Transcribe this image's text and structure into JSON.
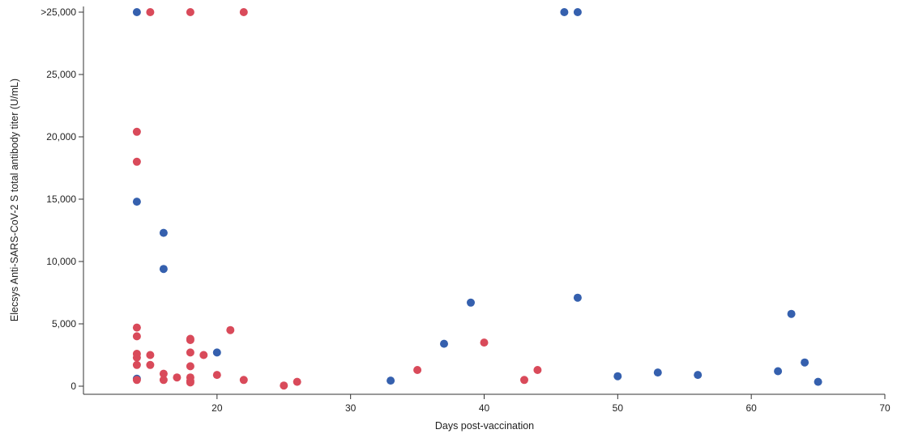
{
  "chart_data": {
    "type": "scatter",
    "title": "",
    "xlabel": "Days post-vaccination",
    "ylabel": "Elecsys Anti-SARS-CoV-2 S total antibody titer (U/mL)",
    "xlim": [
      10,
      70
    ],
    "ylim": [
      0,
      25000
    ],
    "x_ticks": [
      20,
      30,
      40,
      50,
      60,
      70
    ],
    "y_ticks": [
      {
        "value": 0,
        "label": "0"
      },
      {
        "value": 5000,
        "label": "5,000"
      },
      {
        "value": 10000,
        "label": "10,000"
      },
      {
        "value": 15000,
        "label": "15,000"
      },
      {
        "value": 20000,
        "label": "20,000"
      },
      {
        "value": 25000,
        "label": "25,000"
      },
      {
        "value": ">25000",
        "label": ">25,000"
      }
    ],
    "overflow_label": ">25,000",
    "grid": false,
    "legend": "none",
    "series": [
      {
        "color": "#3560ae",
        "points": [
          [
            14,
            ">25000"
          ],
          [
            46,
            ">25000"
          ],
          [
            47,
            ">25000"
          ],
          [
            14,
            14800
          ],
          [
            16,
            12300
          ],
          [
            16,
            9400
          ],
          [
            14,
            600
          ],
          [
            20,
            2700
          ],
          [
            33,
            450
          ],
          [
            37,
            3400
          ],
          [
            39,
            6700
          ],
          [
            47,
            7100
          ],
          [
            50,
            800
          ],
          [
            53,
            1100
          ],
          [
            56,
            900
          ],
          [
            62,
            1200
          ],
          [
            63,
            5800
          ],
          [
            64,
            1900
          ],
          [
            65,
            350
          ]
        ]
      },
      {
        "color": "#d94a5a",
        "points": [
          [
            15,
            ">25000"
          ],
          [
            18,
            ">25000"
          ],
          [
            22,
            ">25000"
          ],
          [
            14,
            20400
          ],
          [
            14,
            18000
          ],
          [
            14,
            4700
          ],
          [
            14,
            4000
          ],
          [
            14,
            2600
          ],
          [
            14,
            2300
          ],
          [
            14,
            1700
          ],
          [
            14,
            500
          ],
          [
            15,
            2500
          ],
          [
            15,
            1700
          ],
          [
            16,
            1000
          ],
          [
            16,
            500
          ],
          [
            17,
            700
          ],
          [
            18,
            3800
          ],
          [
            18,
            3700
          ],
          [
            18,
            2700
          ],
          [
            18,
            1600
          ],
          [
            18,
            700
          ],
          [
            18,
            400
          ],
          [
            18,
            300
          ],
          [
            19,
            2500
          ],
          [
            20,
            900
          ],
          [
            21,
            4500
          ],
          [
            22,
            500
          ],
          [
            25,
            50
          ],
          [
            26,
            350
          ],
          [
            35,
            1300
          ],
          [
            40,
            3500
          ],
          [
            43,
            500
          ],
          [
            44,
            1300
          ]
        ]
      }
    ]
  }
}
